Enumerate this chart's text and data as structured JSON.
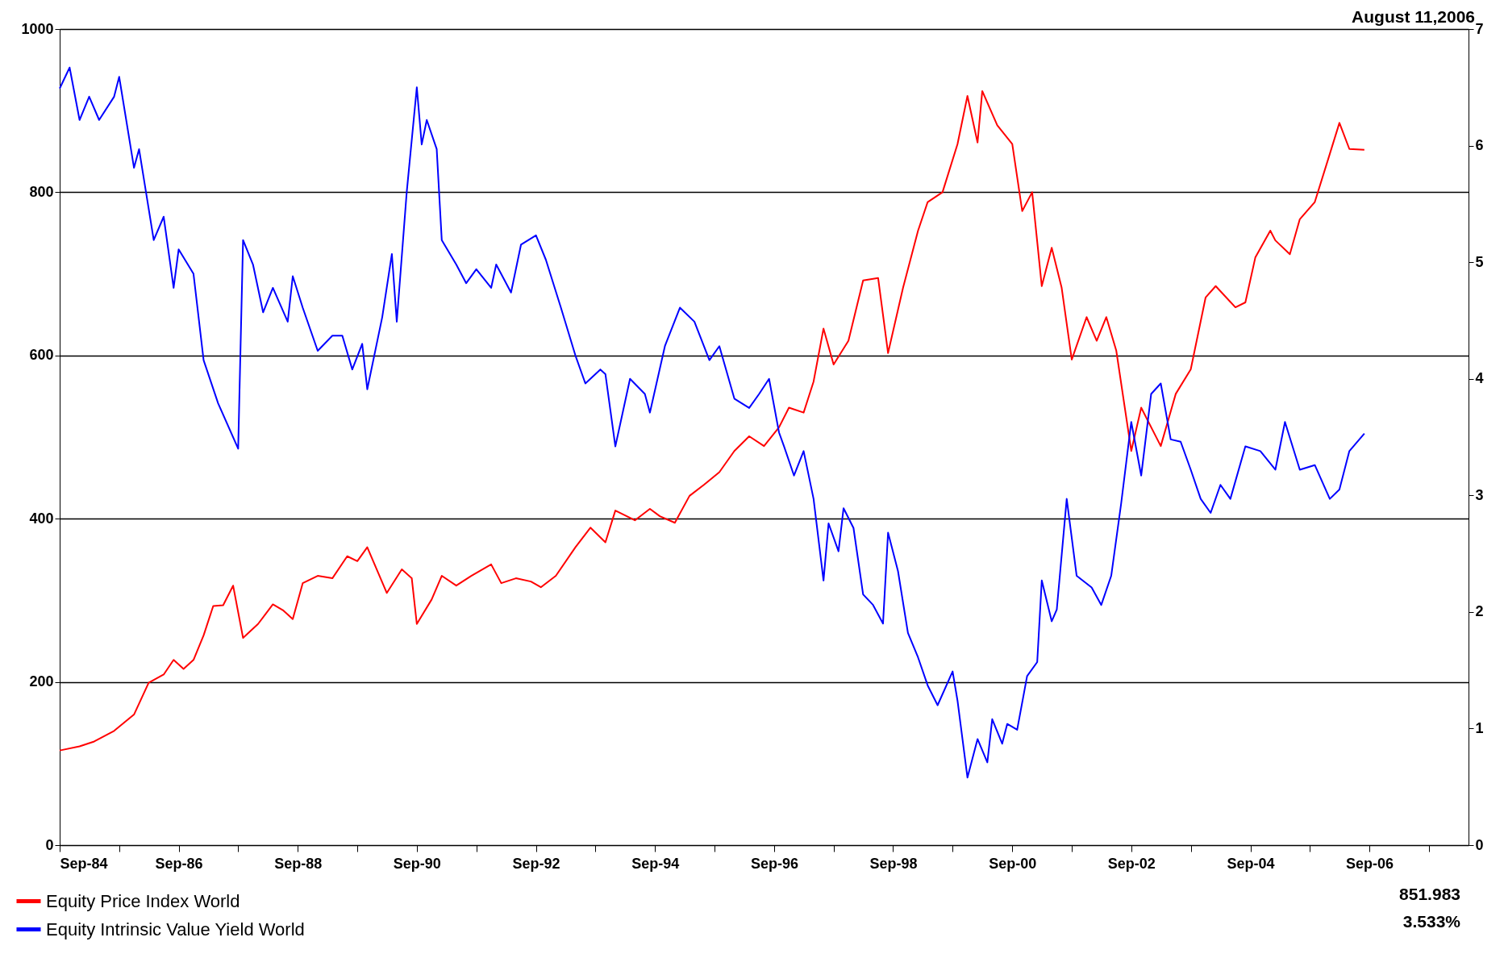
{
  "chart_data": {
    "type": "line",
    "legend": "bottom",
    "grid": "y",
    "marker": "none",
    "line_style": "solid",
    "annotations": [
      "August 11,2006",
      "851.983",
      "3.533%"
    ],
    "xlim": [
      "1984-09",
      "2008-05"
    ],
    "xticks": [
      {
        "value": "1984-09",
        "label": "Sep-84"
      },
      {
        "value": "1985-09",
        "label": null
      },
      {
        "value": "1986-09",
        "label": "Sep-86"
      },
      {
        "value": "1987-09",
        "label": null
      },
      {
        "value": "1988-09",
        "label": "Sep-88"
      },
      {
        "value": "1989-09",
        "label": null
      },
      {
        "value": "1990-09",
        "label": "Sep-90"
      },
      {
        "value": "1991-09",
        "label": null
      },
      {
        "value": "1992-09",
        "label": "Sep-92"
      },
      {
        "value": "1993-09",
        "label": null
      },
      {
        "value": "1994-09",
        "label": "Sep-94"
      },
      {
        "value": "1995-09",
        "label": null
      },
      {
        "value": "1996-09",
        "label": "Sep-96"
      },
      {
        "value": "1997-09",
        "label": null
      },
      {
        "value": "1998-09",
        "label": "Sep-98"
      },
      {
        "value": "1999-09",
        "label": null
      },
      {
        "value": "2000-09",
        "label": "Sep-00"
      },
      {
        "value": "2001-09",
        "label": null
      },
      {
        "value": "2002-09",
        "label": "Sep-02"
      },
      {
        "value": "2003-09",
        "label": null
      },
      {
        "value": "2004-09",
        "label": "Sep-04"
      },
      {
        "value": "2005-09",
        "label": null
      },
      {
        "value": "2006-09",
        "label": "Sep-06"
      },
      {
        "value": "2007-09",
        "label": null
      }
    ],
    "ylim": [
      0,
      1000
    ],
    "yticks": [
      0,
      200,
      400,
      600,
      800,
      1000
    ],
    "y2lim": [
      0,
      7
    ],
    "y2ticks": [
      0,
      1,
      2,
      3,
      4,
      5,
      6,
      7
    ],
    "series": [
      {
        "name": "Equity Price Index  World",
        "color": "#ff0000",
        "axis": "y",
        "x": [
          "1984-09",
          "1985-01",
          "1985-04",
          "1985-08",
          "1985-12",
          "1986-03",
          "1986-06",
          "1986-08",
          "1986-10",
          "1986-12",
          "1987-02",
          "1987-04",
          "1987-06",
          "1987-08",
          "1987-10",
          "1988-01",
          "1988-04",
          "1988-06",
          "1988-08",
          "1988-10",
          "1989-01",
          "1989-04",
          "1989-07",
          "1989-09",
          "1989-11",
          "1990-03",
          "1990-06",
          "1990-08",
          "1990-09",
          "1990-12",
          "1991-02",
          "1991-05",
          "1991-08",
          "1991-12",
          "1992-02",
          "1992-05",
          "1992-08",
          "1992-10",
          "1993-01",
          "1993-05",
          "1993-08",
          "1993-11",
          "1994-01",
          "1994-05",
          "1994-08",
          "1994-10",
          "1995-01",
          "1995-04",
          "1995-07",
          "1995-10",
          "1996-01",
          "1996-04",
          "1996-07",
          "1996-10",
          "1996-12",
          "1997-03",
          "1997-05",
          "1997-07",
          "1997-09",
          "1997-12",
          "1998-03",
          "1998-06",
          "1998-08",
          "1998-11",
          "1999-02",
          "1999-04",
          "1999-07",
          "1999-10",
          "1999-12",
          "2000-02",
          "2000-03",
          "2000-06",
          "2000-09",
          "2000-11",
          "2001-01",
          "2001-03",
          "2001-05",
          "2001-07",
          "2001-09",
          "2001-12",
          "2002-02",
          "2002-04",
          "2002-06",
          "2002-09",
          "2002-11",
          "2003-03",
          "2003-06",
          "2003-09",
          "2003-12",
          "2004-02",
          "2004-06",
          "2004-08",
          "2004-10",
          "2005-01",
          "2005-02",
          "2005-05",
          "2005-07",
          "2005-10",
          "2006-01",
          "2006-03",
          "2006-05",
          "2006-08"
        ],
        "values": [
          116,
          121,
          127,
          140,
          160,
          199,
          209,
          227,
          216,
          227,
          257,
          293,
          294,
          318,
          254,
          271,
          295,
          288,
          277,
          321,
          330,
          327,
          354,
          348,
          365,
          309,
          338,
          327,
          271,
          301,
          330,
          318,
          330,
          344,
          321,
          327,
          323,
          316,
          330,
          365,
          389,
          371,
          410,
          398,
          412,
          403,
          395,
          428,
          442,
          457,
          483,
          501,
          489,
          512,
          536,
          530,
          568,
          633,
          589,
          618,
          692,
          695,
          603,
          683,
          753,
          788,
          800,
          859,
          918,
          861,
          924,
          882,
          859,
          777,
          800,
          685,
          732,
          683,
          595,
          647,
          618,
          647,
          606,
          483,
          536,
          489,
          553,
          583,
          671,
          685,
          659,
          665,
          720,
          753,
          741,
          724,
          767,
          788,
          847,
          885,
          853,
          852
        ]
      },
      {
        "name": "Equity Intrinsic Value Yield  World",
        "color": "#0000ff",
        "axis": "y2",
        "x": [
          "1984-09",
          "1984-11",
          "1985-01",
          "1985-03",
          "1985-05",
          "1985-08",
          "1985-09",
          "1985-12",
          "1986-01",
          "1986-04",
          "1986-06",
          "1986-08",
          "1986-09",
          "1986-12",
          "1987-02",
          "1987-05",
          "1987-09",
          "1987-10",
          "1987-12",
          "1988-02",
          "1988-04",
          "1988-07",
          "1988-08",
          "1988-10",
          "1989-01",
          "1989-04",
          "1989-06",
          "1989-08",
          "1989-10",
          "1989-11",
          "1990-02",
          "1990-04",
          "1990-05",
          "1990-07",
          "1990-09",
          "1990-10",
          "1990-11",
          "1991-01",
          "1991-02",
          "1991-05",
          "1991-07",
          "1991-09",
          "1991-12",
          "1992-01",
          "1992-04",
          "1992-06",
          "1992-09",
          "1992-11",
          "1993-02",
          "1993-05",
          "1993-07",
          "1993-10",
          "1993-11",
          "1994-01",
          "1994-04",
          "1994-07",
          "1994-08",
          "1994-11",
          "1995-02",
          "1995-05",
          "1995-08",
          "1995-10",
          "1996-01",
          "1996-04",
          "1996-06",
          "1996-08",
          "1996-10",
          "1996-11",
          "1997-01",
          "1997-03",
          "1997-05",
          "1997-07",
          "1997-08",
          "1997-10",
          "1997-11",
          "1998-01",
          "1998-03",
          "1998-05",
          "1998-07",
          "1998-08",
          "1998-10",
          "1998-12",
          "1999-02",
          "1999-04",
          "1999-06",
          "1999-09",
          "1999-10",
          "1999-12",
          "2000-02",
          "2000-04",
          "2000-05",
          "2000-07",
          "2000-08",
          "2000-10",
          "2000-12",
          "2001-02",
          "2001-03",
          "2001-05",
          "2001-06",
          "2001-08",
          "2001-10",
          "2002-01",
          "2002-03",
          "2002-05",
          "2002-07",
          "2002-09",
          "2002-11",
          "2003-01",
          "2003-03",
          "2003-05",
          "2003-07",
          "2003-09",
          "2003-11",
          "2004-01",
          "2004-03",
          "2004-05",
          "2004-08",
          "2004-11",
          "2005-02",
          "2005-04",
          "2005-07",
          "2005-10",
          "2006-01",
          "2006-03",
          "2006-05",
          "2006-08"
        ],
        "values": [
          6.49,
          6.67,
          6.22,
          6.42,
          6.22,
          6.42,
          6.59,
          5.81,
          5.97,
          5.19,
          5.39,
          4.78,
          5.11,
          4.9,
          4.16,
          3.79,
          3.4,
          5.19,
          4.98,
          4.57,
          4.78,
          4.49,
          4.88,
          4.61,
          4.24,
          4.37,
          4.37,
          4.08,
          4.3,
          3.91,
          4.53,
          5.07,
          4.49,
          5.6,
          6.5,
          6.01,
          6.22,
          5.97,
          5.19,
          4.98,
          4.82,
          4.94,
          4.78,
          4.98,
          4.74,
          5.15,
          5.23,
          5.02,
          4.61,
          4.2,
          3.96,
          4.08,
          4.04,
          3.42,
          4.0,
          3.87,
          3.71,
          4.28,
          4.61,
          4.49,
          4.16,
          4.28,
          3.83,
          3.75,
          3.87,
          4.0,
          3.54,
          3.42,
          3.17,
          3.38,
          2.97,
          2.27,
          2.76,
          2.52,
          2.89,
          2.72,
          2.15,
          2.06,
          1.9,
          2.68,
          2.35,
          1.82,
          1.61,
          1.37,
          1.2,
          1.49,
          1.24,
          0.58,
          0.91,
          0.71,
          1.08,
          0.87,
          1.04,
          0.99,
          1.45,
          1.57,
          2.27,
          1.92,
          2.02,
          2.97,
          2.31,
          2.21,
          2.06,
          2.31,
          2.93,
          3.63,
          3.17,
          3.87,
          3.96,
          3.48,
          3.46,
          3.22,
          2.97,
          2.85,
          3.09,
          2.97,
          3.42,
          3.38,
          3.22,
          3.63,
          3.22,
          3.26,
          2.97,
          3.05,
          3.38,
          3.53
        ]
      }
    ]
  }
}
